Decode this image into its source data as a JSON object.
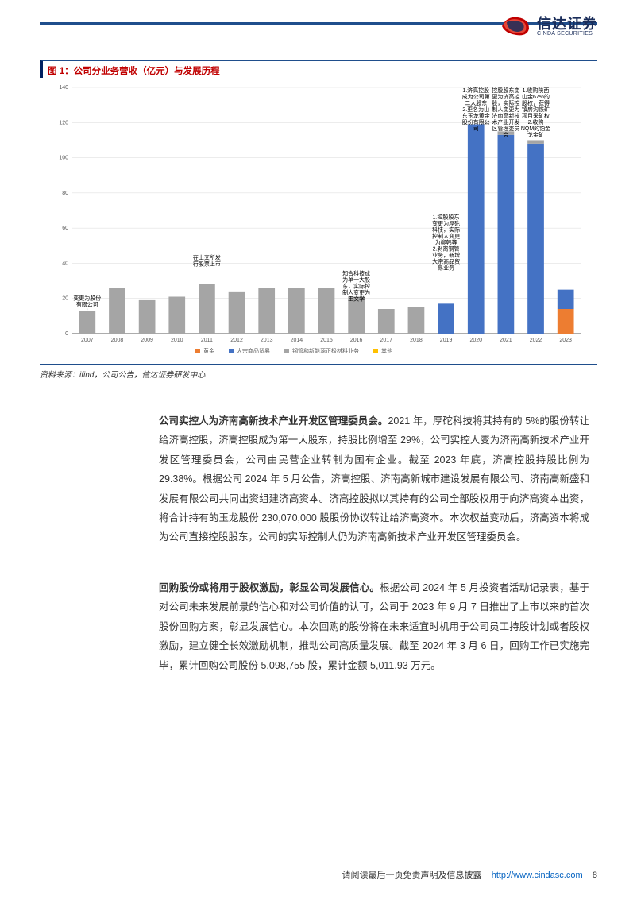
{
  "logo": {
    "cn": "信达证券",
    "en": "CINDA SECURITIES"
  },
  "figure": {
    "title": "图 1：公司分业务营收（亿元）与发展历程",
    "source": "资料来源：ifind，公司公告，信达证券研发中心"
  },
  "chart": {
    "type": "stacked-bar",
    "years": [
      "2007",
      "2008",
      "2009",
      "2010",
      "2011",
      "2012",
      "2013",
      "2014",
      "2015",
      "2016",
      "2017",
      "2018",
      "2019",
      "2020",
      "2021",
      "2022",
      "2023"
    ],
    "ylim": [
      0,
      140
    ],
    "ytick_step": 20,
    "yticks": [
      0,
      20,
      40,
      60,
      80,
      100,
      120,
      140
    ],
    "background_color": "#ffffff",
    "grid_color": "#d9d9d9",
    "axis_color": "#595959",
    "label_fontsize": 7,
    "bar_width": 0.55,
    "series": {
      "gold": {
        "label": "黄金",
        "color": "#ed7d31",
        "values": [
          0,
          0,
          0,
          0,
          0,
          0,
          0,
          0,
          0,
          0,
          0,
          0,
          0,
          0,
          0,
          0,
          14
        ]
      },
      "trade": {
        "label": "大宗商品贸易",
        "color": "#4472c4",
        "values": [
          0,
          0,
          0,
          0,
          0,
          0,
          0,
          0,
          0,
          0,
          0,
          0,
          17,
          119,
          113,
          108,
          11
        ]
      },
      "steel": {
        "label": "钢管和新能源正极材料业务",
        "color": "#a5a5a5",
        "values": [
          13,
          26,
          19,
          21,
          28,
          24,
          26,
          26,
          26,
          21,
          14,
          15,
          0,
          0,
          2,
          2,
          0
        ]
      },
      "other": {
        "label": "其他",
        "color": "#ffc000",
        "values": [
          0,
          0,
          0,
          0,
          0,
          0,
          0,
          0,
          0,
          0,
          0,
          0,
          0,
          0,
          0,
          0,
          0
        ]
      }
    },
    "annotations": [
      {
        "year": "2007",
        "y": 22,
        "text": "变更为股份\n有限公司"
      },
      {
        "year": "2011",
        "y": 45,
        "text": "在上交所发\n行股票上市"
      },
      {
        "year": "2016",
        "y": 36,
        "text": "知合科技成\n为单一大股\n东，实际控\n制人变更为\n王文学"
      },
      {
        "year": "2019",
        "y": 68,
        "text": "1.控股股东\n变更为厚砣\n科技，实际\n控制人变更\n为柳韩等\n2.剥离钢管\n业务，新增\n大宗商品贸\n易业务"
      },
      {
        "year": "2020",
        "y": 140,
        "text": "1.济高控股\n成为公司第\n二大股东\n2.更名为山\n东玉龙黄金\n股份有限公\n司"
      },
      {
        "year": "2021",
        "y": 140,
        "text": "控股股东变\n更为济高控\n股，实际控\n制人变更为\n济南高新技\n术产业开发\n区管理委员\n会"
      },
      {
        "year": "2022",
        "y": 140,
        "text": "1.收购陕西\n山金67%的\n股权，获得\n镇房沟铁矿\n项目采矿权\n2.收购\nNQM的铂金\n戈金矿"
      }
    ]
  },
  "paragraphs": {
    "p1_bold": "公司实控人为济南高新技术产业开发区管理委员会。",
    "p1_rest": "2021 年，厚砣科技将其持有的 5%的股份转让给济高控股，济高控股成为第一大股东，持股比例增至 29%，公司实控人变为济南高新技术产业开发区管理委员会，公司由民营企业转制为国有企业。截至 2023 年底，济高控股持股比例为 29.38%。根据公司 2024 年 5 月公告，济高控股、济南高新城市建设发展有限公司、济南高新盛和发展有限公司共同出资组建济高资本。济高控股拟以其持有的公司全部股权用于向济高资本出资，将合计持有的玉龙股份 230,070,000 股股份协议转让给济高资本。本次权益变动后，济高资本将成为公司直接控股股东，公司的实际控制人仍为济南高新技术产业开发区管理委员会。",
    "p2_bold": "回购股份或将用于股权激励，彰显公司发展信心。",
    "p2_rest": "根据公司 2024 年 5 月投资者活动记录表，基于对公司未来发展前景的信心和对公司价值的认可，公司于 2023 年 9 月 7 日推出了上市以来的首次股份回购方案，彰显发展信心。本次回购的股份将在未来适宜时机用于公司员工持股计划或者股权激励，建立健全长效激励机制，推动公司高质量发展。截至 2024 年 3 月 6 日，回购工作已实施完毕，累计回购公司股份 5,098,755 股，累计金额 5,011.93 万元。"
  },
  "footer": {
    "text": "请阅读最后一页免责声明及信息披露",
    "url": "http://www.cindasc.com",
    "page": "8"
  }
}
